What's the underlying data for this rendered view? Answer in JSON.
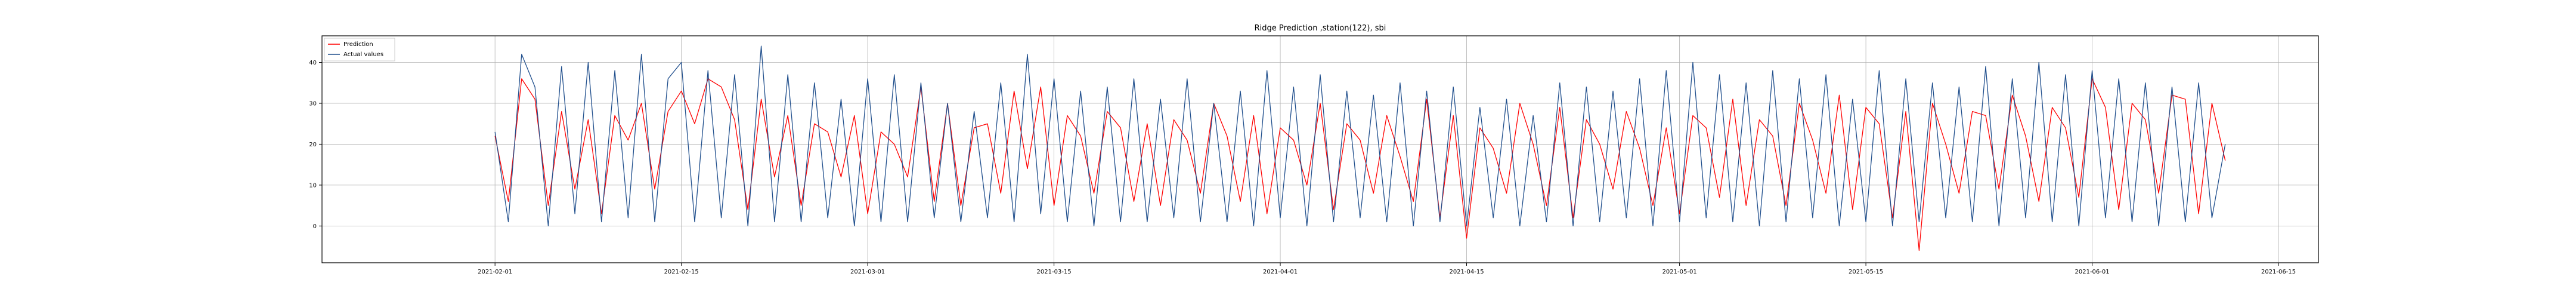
{
  "chart_data": {
    "type": "line",
    "title": "Ridge Prediction ,station(122), sbi",
    "xlabel": "",
    "ylabel": "",
    "x_range": [
      "2021-01-19",
      "2021-06-18"
    ],
    "ylim": [
      -9,
      46.5
    ],
    "grid": true,
    "legend_position": "top-left",
    "x_ticks": [
      "2021-02-01",
      "2021-02-15",
      "2021-03-01",
      "2021-03-15",
      "2021-04-01",
      "2021-04-15",
      "2021-05-01",
      "2021-05-15",
      "2021-06-01",
      "2021-06-15"
    ],
    "y_ticks": [
      0,
      10,
      20,
      30,
      40
    ],
    "series": [
      {
        "name": "Prediction",
        "color": "#ff0000",
        "x": [
          "2021-02-01",
          "2021-02-02",
          "2021-02-03",
          "2021-02-04",
          "2021-02-05",
          "2021-02-06",
          "2021-02-07",
          "2021-02-08",
          "2021-02-09",
          "2021-02-10",
          "2021-02-11",
          "2021-02-12",
          "2021-02-13",
          "2021-02-14",
          "2021-02-15",
          "2021-02-16",
          "2021-02-17",
          "2021-02-18",
          "2021-02-19",
          "2021-02-20",
          "2021-02-21",
          "2021-02-22",
          "2021-02-23",
          "2021-02-24",
          "2021-02-25",
          "2021-02-26",
          "2021-02-27",
          "2021-02-28",
          "2021-03-01",
          "2021-03-02",
          "2021-03-03",
          "2021-03-04",
          "2021-03-05",
          "2021-03-06",
          "2021-03-07",
          "2021-03-08",
          "2021-03-09",
          "2021-03-10",
          "2021-03-11",
          "2021-03-12",
          "2021-03-13",
          "2021-03-14",
          "2021-03-15",
          "2021-03-16",
          "2021-03-17",
          "2021-03-18",
          "2021-03-19",
          "2021-03-20",
          "2021-03-21",
          "2021-03-22",
          "2021-03-23",
          "2021-03-24",
          "2021-03-25",
          "2021-03-26",
          "2021-03-27",
          "2021-03-28",
          "2021-03-29",
          "2021-03-30",
          "2021-03-31",
          "2021-04-01",
          "2021-04-02",
          "2021-04-03",
          "2021-04-04",
          "2021-04-05",
          "2021-04-06",
          "2021-04-07",
          "2021-04-08",
          "2021-04-09",
          "2021-04-10",
          "2021-04-11",
          "2021-04-12",
          "2021-04-13",
          "2021-04-14",
          "2021-04-15",
          "2021-04-16",
          "2021-04-17",
          "2021-04-18",
          "2021-04-19",
          "2021-04-20",
          "2021-04-21",
          "2021-04-22",
          "2021-04-23",
          "2021-04-24",
          "2021-04-25",
          "2021-04-26",
          "2021-04-27",
          "2021-04-28",
          "2021-04-29",
          "2021-04-30",
          "2021-05-01",
          "2021-05-02",
          "2021-05-03",
          "2021-05-04",
          "2021-05-05",
          "2021-05-06",
          "2021-05-07",
          "2021-05-08",
          "2021-05-09",
          "2021-05-10",
          "2021-05-11",
          "2021-05-12",
          "2021-05-13",
          "2021-05-14",
          "2021-05-15",
          "2021-05-16",
          "2021-05-17",
          "2021-05-18",
          "2021-05-19",
          "2021-05-20",
          "2021-05-21",
          "2021-05-22",
          "2021-05-23",
          "2021-05-24",
          "2021-05-25",
          "2021-05-26",
          "2021-05-27",
          "2021-05-28",
          "2021-05-29",
          "2021-05-30",
          "2021-05-31",
          "2021-06-01",
          "2021-06-02",
          "2021-06-03",
          "2021-06-04",
          "2021-06-05",
          "2021-06-06",
          "2021-06-07",
          "2021-06-08",
          "2021-06-09",
          "2021-06-10",
          "2021-06-11"
        ],
        "values": [
          22,
          6,
          36,
          31,
          5,
          28,
          9,
          26,
          3,
          27,
          21,
          30,
          9,
          28,
          33,
          25,
          36,
          34,
          26,
          4,
          31,
          12,
          27,
          5,
          25,
          23,
          12,
          27,
          3,
          23,
          20,
          12,
          34,
          6,
          30,
          5,
          24,
          25,
          8,
          33,
          14,
          34,
          5,
          27,
          22,
          8,
          28,
          24,
          6,
          25,
          5,
          26,
          21,
          8,
          30,
          22,
          6,
          27,
          3,
          24,
          21,
          10,
          30,
          4,
          25,
          21,
          8,
          27,
          17,
          6,
          31,
          2,
          27,
          -3,
          24,
          19,
          8,
          30,
          20,
          5,
          29,
          2,
          26,
          20,
          9,
          28,
          19,
          5,
          24,
          3,
          27,
          24,
          7,
          31,
          5,
          26,
          22,
          5,
          30,
          21,
          8,
          32,
          4,
          29,
          25,
          2,
          28,
          -6,
          30,
          20,
          8,
          28,
          27,
          9,
          32,
          22,
          6,
          29,
          24,
          7,
          36,
          29,
          4,
          30,
          26,
          8,
          32,
          31,
          3,
          30,
          16
        ]
      },
      {
        "name": "Actual values",
        "color": "#1f4e8c",
        "x": [
          "2021-02-01",
          "2021-02-02",
          "2021-02-03",
          "2021-02-04",
          "2021-02-05",
          "2021-02-06",
          "2021-02-07",
          "2021-02-08",
          "2021-02-09",
          "2021-02-10",
          "2021-02-11",
          "2021-02-12",
          "2021-02-13",
          "2021-02-14",
          "2021-02-15",
          "2021-02-16",
          "2021-02-17",
          "2021-02-18",
          "2021-02-19",
          "2021-02-20",
          "2021-02-21",
          "2021-02-22",
          "2021-02-23",
          "2021-02-24",
          "2021-02-25",
          "2021-02-26",
          "2021-02-27",
          "2021-02-28",
          "2021-03-01",
          "2021-03-02",
          "2021-03-03",
          "2021-03-04",
          "2021-03-05",
          "2021-03-06",
          "2021-03-07",
          "2021-03-08",
          "2021-03-09",
          "2021-03-10",
          "2021-03-11",
          "2021-03-12",
          "2021-03-13",
          "2021-03-14",
          "2021-03-15",
          "2021-03-16",
          "2021-03-17",
          "2021-03-18",
          "2021-03-19",
          "2021-03-20",
          "2021-03-21",
          "2021-03-22",
          "2021-03-23",
          "2021-03-24",
          "2021-03-25",
          "2021-03-26",
          "2021-03-27",
          "2021-03-28",
          "2021-03-29",
          "2021-03-30",
          "2021-03-31",
          "2021-04-01",
          "2021-04-02",
          "2021-04-03",
          "2021-04-04",
          "2021-04-05",
          "2021-04-06",
          "2021-04-07",
          "2021-04-08",
          "2021-04-09",
          "2021-04-10",
          "2021-04-11",
          "2021-04-12",
          "2021-04-13",
          "2021-04-14",
          "2021-04-15",
          "2021-04-16",
          "2021-04-17",
          "2021-04-18",
          "2021-04-19",
          "2021-04-20",
          "2021-04-21",
          "2021-04-22",
          "2021-04-23",
          "2021-04-24",
          "2021-04-25",
          "2021-04-26",
          "2021-04-27",
          "2021-04-28",
          "2021-04-29",
          "2021-04-30",
          "2021-05-01",
          "2021-05-02",
          "2021-05-03",
          "2021-05-04",
          "2021-05-05",
          "2021-05-06",
          "2021-05-07",
          "2021-05-08",
          "2021-05-09",
          "2021-05-10",
          "2021-05-11",
          "2021-05-12",
          "2021-05-13",
          "2021-05-14",
          "2021-05-15",
          "2021-05-16",
          "2021-05-17",
          "2021-05-18",
          "2021-05-19",
          "2021-05-20",
          "2021-05-21",
          "2021-05-22",
          "2021-05-23",
          "2021-05-24",
          "2021-05-25",
          "2021-05-26",
          "2021-05-27",
          "2021-05-28",
          "2021-05-29",
          "2021-05-30",
          "2021-05-31",
          "2021-06-01",
          "2021-06-02",
          "2021-06-03",
          "2021-06-04",
          "2021-06-05",
          "2021-06-06",
          "2021-06-07",
          "2021-06-08",
          "2021-06-09",
          "2021-06-10",
          "2021-06-11"
        ],
        "values": [
          23,
          1,
          42,
          34,
          0,
          39,
          3,
          40,
          1,
          38,
          2,
          42,
          1,
          36,
          40,
          1,
          38,
          2,
          37,
          0,
          44,
          1,
          37,
          1,
          35,
          2,
          31,
          0,
          36,
          1,
          37,
          1,
          35,
          2,
          30,
          1,
          28,
          2,
          35,
          1,
          42,
          3,
          36,
          1,
          33,
          0,
          34,
          1,
          36,
          1,
          31,
          2,
          36,
          1,
          30,
          1,
          33,
          0,
          38,
          2,
          34,
          0,
          37,
          1,
          33,
          2,
          32,
          1,
          35,
          0,
          33,
          1,
          34,
          0,
          29,
          2,
          31,
          0,
          27,
          1,
          35,
          0,
          34,
          1,
          33,
          2,
          36,
          0,
          38,
          1,
          40,
          2,
          37,
          1,
          35,
          0,
          38,
          1,
          36,
          2,
          37,
          0,
          31,
          1,
          38,
          0,
          36,
          1,
          35,
          2,
          34,
          1,
          39,
          0,
          36,
          2,
          40,
          1,
          37,
          0,
          38,
          2,
          36,
          1,
          35,
          0,
          34,
          1,
          35,
          2,
          20
        ]
      }
    ]
  }
}
